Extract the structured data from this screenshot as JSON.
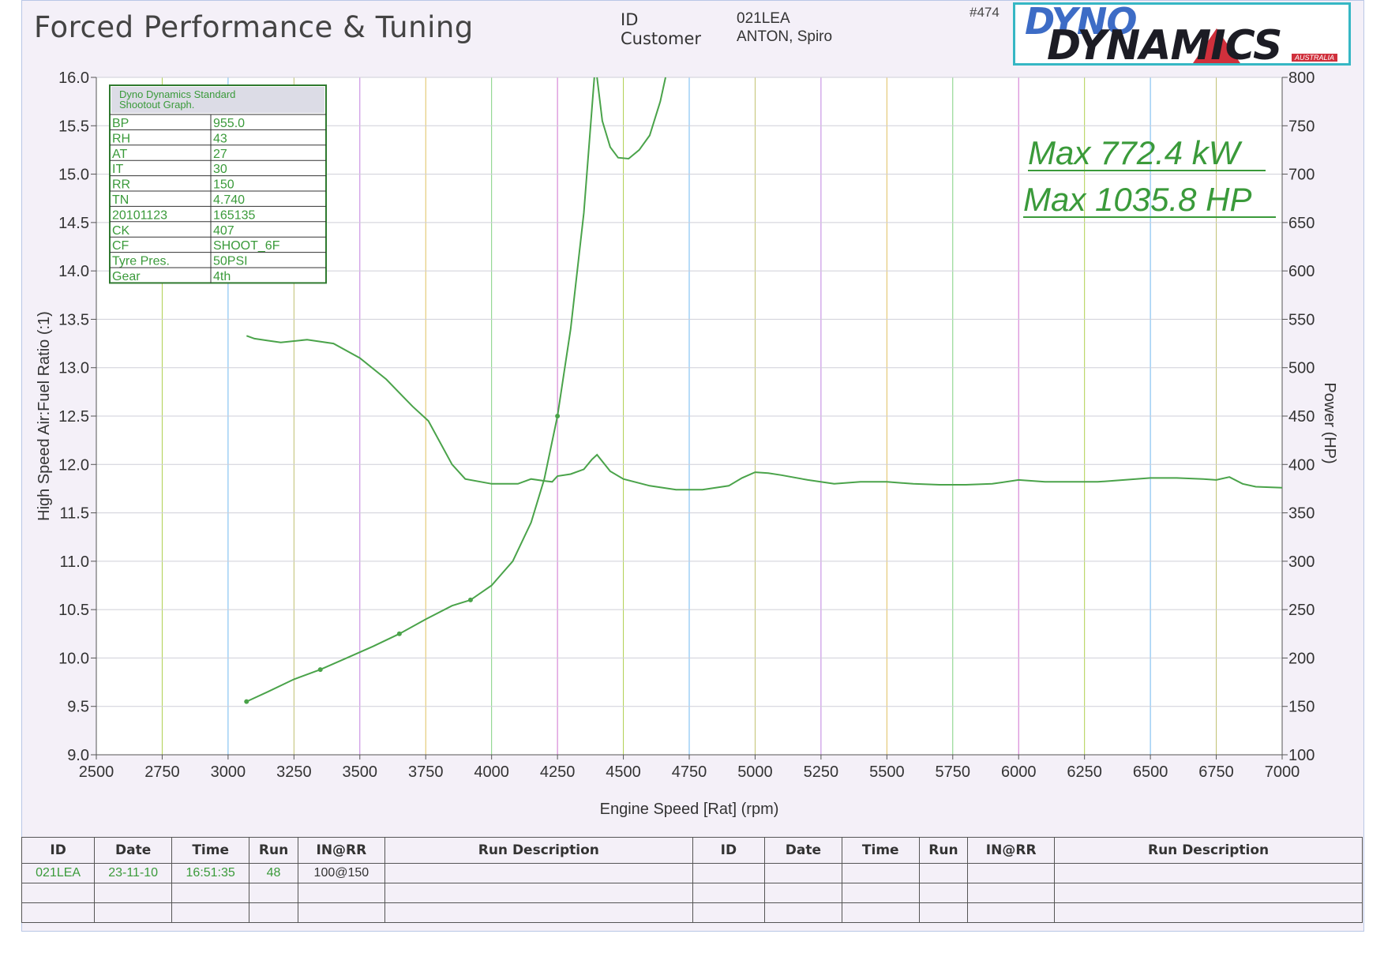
{
  "header": {
    "shop_title": "Forced Performance & Tuning",
    "id_label": "ID",
    "id_value": "021LEA",
    "customer_label": "Customer",
    "customer_value": "ANTON, Spiro",
    "sheet_number": "#474",
    "logo_line1": "DYNO",
    "logo_line2": "DYNAMICS",
    "logo_sub": "AUSTRALIA"
  },
  "settings_box": {
    "title_line1": "Dyno Dynamics Standard",
    "title_line2": "Shootout Graph.",
    "rows": [
      {
        "key": "BP",
        "value": "955.0"
      },
      {
        "key": "RH",
        "value": "43"
      },
      {
        "key": "AT",
        "value": "27"
      },
      {
        "key": "IT",
        "value": "30"
      },
      {
        "key": "RR",
        "value": "150"
      },
      {
        "key": "TN",
        "value": "4.740"
      },
      {
        "key": "20101123",
        "value": "165135"
      },
      {
        "key": "CK",
        "value": "407"
      },
      {
        "key": "CF",
        "value": "SHOOT_6F"
      },
      {
        "key": "Tyre Pres.",
        "value": "50PSI"
      },
      {
        "key": "Gear",
        "value": "4th"
      }
    ]
  },
  "annotations": {
    "max_kw": "Max 772.4 kW",
    "max_hp": "Max 1035.8 HP"
  },
  "colors": {
    "curve": "#4aa34a",
    "grid_major": "#c9c9d6",
    "text_green": "#3a9a3a"
  },
  "chart_data": {
    "type": "line",
    "xlabel": "Engine Speed [Rat] (rpm)",
    "ylabel_left": "High Speed Air:Fuel Ratio (:1)",
    "ylabel_right": "Power (HP)",
    "xlim": [
      2500,
      7000
    ],
    "ylim_left": [
      9.0,
      16.0
    ],
    "ylim_right": [
      100,
      800
    ],
    "x_ticks": [
      "2500",
      "2750",
      "3000",
      "3250",
      "3500",
      "3750",
      "4000",
      "4250",
      "4500",
      "4750",
      "5000",
      "5250",
      "5500",
      "5750",
      "6000",
      "6250",
      "6500",
      "6750",
      "7000"
    ],
    "y_left_ticks": [
      "9.0",
      "9.5",
      "10.0",
      "10.5",
      "11.0",
      "11.5",
      "12.0",
      "12.5",
      "13.0",
      "13.5",
      "14.0",
      "14.5",
      "15.0",
      "15.5",
      "16.0"
    ],
    "y_right_ticks": [
      "100",
      "150",
      "200",
      "250",
      "300",
      "350",
      "400",
      "450",
      "500",
      "550",
      "600",
      "650",
      "700",
      "750",
      "800"
    ],
    "grid": true,
    "series": [
      {
        "axis": "right",
        "x": [
          3070,
          3150,
          3250,
          3350,
          3450,
          3550,
          3650,
          3750,
          3850,
          3920,
          4000,
          4080,
          4150,
          4200,
          4250,
          4300,
          4350,
          4390
        ],
        "y": [
          155,
          165,
          178,
          188,
          200,
          212,
          225,
          240,
          254,
          260,
          275,
          300,
          340,
          385,
          450,
          540,
          660,
          800
        ]
      },
      {
        "axis": "right",
        "x": [
          4400,
          4420,
          4450,
          4480,
          4520,
          4560,
          4600,
          4640,
          4660
        ],
        "y": [
          800,
          755,
          728,
          717,
          716,
          725,
          740,
          775,
          800
        ]
      },
      {
        "axis": "left",
        "x": [
          3070,
          3100,
          3150,
          3200,
          3300,
          3400,
          3500,
          3600,
          3700,
          3760,
          3800,
          3850,
          3900,
          4000,
          4100,
          4150,
          4200,
          4230,
          4250,
          4300,
          4350,
          4380,
          4400,
          4450,
          4500,
          4600,
          4700,
          4800,
          4900,
          4950,
          5000,
          5050,
          5100,
          5200,
          5300,
          5400,
          5500,
          5600,
          5700,
          5800,
          5900,
          6000,
          6100,
          6200,
          6300,
          6400,
          6500,
          6600,
          6700,
          6750,
          6800,
          6850,
          6900,
          7000
        ],
        "y": [
          13.33,
          13.3,
          13.28,
          13.26,
          13.29,
          13.25,
          13.1,
          12.88,
          12.6,
          12.45,
          12.25,
          12.0,
          11.85,
          11.8,
          11.8,
          11.85,
          11.83,
          11.82,
          11.88,
          11.9,
          11.95,
          12.05,
          12.1,
          11.93,
          11.85,
          11.78,
          11.74,
          11.74,
          11.78,
          11.86,
          11.92,
          11.91,
          11.89,
          11.84,
          11.8,
          11.82,
          11.82,
          11.8,
          11.79,
          11.79,
          11.8,
          11.84,
          11.82,
          11.82,
          11.82,
          11.84,
          11.86,
          11.86,
          11.85,
          11.84,
          11.87,
          11.8,
          11.77,
          11.76
        ]
      }
    ]
  },
  "run_table": {
    "headers": [
      "ID",
      "Date",
      "Time",
      "Run",
      "IN@RR",
      "Run Description",
      "ID",
      "Date",
      "Time",
      "Run",
      "IN@RR",
      "Run Description"
    ],
    "rows": [
      [
        "021LEA",
        "23-11-10",
        "16:51:35",
        "48",
        "100@150",
        "",
        "",
        "",
        "",
        "",
        "",
        ""
      ],
      [
        "",
        "",
        "",
        "",
        "",
        "",
        "",
        "",
        "",
        "",
        "",
        ""
      ]
    ]
  }
}
